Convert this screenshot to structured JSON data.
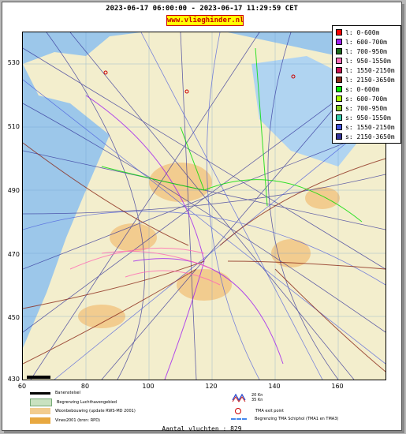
{
  "header": {
    "time_range": "2023-06-17 06:00:00 - 2023-06-17 11:29:59 CET",
    "site": "www.vlieghinder.nl"
  },
  "axes": {
    "y_ticks": [
      "530",
      "510",
      "490",
      "470",
      "450",
      "430"
    ],
    "x_ticks": [
      "60",
      "80",
      "100",
      "120",
      "140",
      "160"
    ],
    "xlim": [
      60,
      175
    ],
    "ylim": [
      430,
      540
    ]
  },
  "legend": {
    "items": [
      {
        "label": "l: 0-600m",
        "color": "#ff0000"
      },
      {
        "label": "l: 600-700m",
        "color": "#a020f0"
      },
      {
        "label": "l: 700-950m",
        "color": "#1a6b1a"
      },
      {
        "label": "l: 950-1550m",
        "color": "#ff69b4"
      },
      {
        "label": "l: 1550-2150m",
        "color": "#cc1155"
      },
      {
        "label": "l: 2150-3650m",
        "color": "#8b2a1a"
      },
      {
        "label": "s: 0-600m",
        "color": "#00ee00"
      },
      {
        "label": "s: 600-700m",
        "color": "#aaff00"
      },
      {
        "label": "s: 700-950m",
        "color": "#88cc22"
      },
      {
        "label": "s: 950-1550m",
        "color": "#33ccaa"
      },
      {
        "label": "s: 1550-2150m",
        "color": "#4455dd"
      },
      {
        "label": "s: 2150-3650m",
        "color": "#333399"
      }
    ]
  },
  "map_legend": {
    "runway": "Banenstelsel",
    "airport_area": "Begrenzing Luchthavengebied",
    "housing": "Woonbebouwing (update RWS-MD 2001)",
    "vinex": "Vinex2001 (bron: RPD)",
    "wind_1": "20 Kn",
    "wind_2": "35 Kn",
    "tma_exit": "TMA exit point",
    "tma_boundary": "Begrenzing TMA Schiphol  (TMA1 en TMA3)"
  },
  "footer": {
    "flight_count": "Aantal vluchten : 829"
  },
  "colors": {
    "sea": "#9cc7ea",
    "land": "#f3eecd",
    "housing": "#f2cc8f",
    "water_body": "#b0d4f1"
  }
}
